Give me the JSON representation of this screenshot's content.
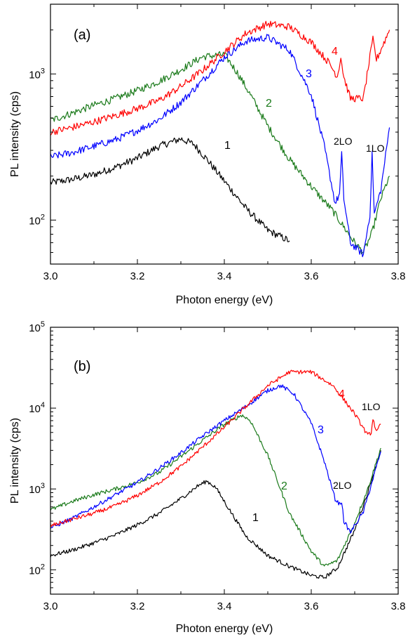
{
  "chart_data": [
    {
      "type": "line",
      "panel_label": "(a)",
      "xlabel": "Photon energy (eV)",
      "ylabel": "PL intensity (cps)",
      "xlim": [
        3.0,
        3.8
      ],
      "ylim": [
        50,
        3000
      ],
      "yscale": "log",
      "x_ticks": [
        "3.0",
        "3.2",
        "3.4",
        "3.6",
        "3.8"
      ],
      "y_ticks": [
        {
          "value": 100,
          "base": "10",
          "exp": "2"
        },
        {
          "value": 1000,
          "base": "10",
          "exp": "3"
        }
      ],
      "series": [
        {
          "name": "1",
          "color": "#000000",
          "x": [
            3.0,
            3.05,
            3.1,
            3.15,
            3.2,
            3.25,
            3.3,
            3.33,
            3.36,
            3.4,
            3.45,
            3.5,
            3.55
          ],
          "y": [
            180,
            190,
            205,
            230,
            265,
            320,
            360,
            330,
            260,
            185,
            120,
            85,
            72
          ]
        },
        {
          "name": "2",
          "color": "#1a7a1a",
          "x": [
            3.0,
            3.05,
            3.1,
            3.15,
            3.2,
            3.25,
            3.3,
            3.35,
            3.4,
            3.43,
            3.46,
            3.5,
            3.55,
            3.6,
            3.65,
            3.7,
            3.72,
            3.74,
            3.76,
            3.78
          ],
          "y": [
            480,
            540,
            610,
            680,
            770,
            890,
            1070,
            1310,
            1360,
            1020,
            720,
            440,
            260,
            170,
            115,
            70,
            60,
            82,
            140,
            200
          ]
        },
        {
          "name": "3",
          "color": "#0000ff",
          "x": [
            3.0,
            3.05,
            3.1,
            3.15,
            3.2,
            3.25,
            3.3,
            3.35,
            3.4,
            3.45,
            3.5,
            3.55,
            3.6,
            3.63,
            3.655,
            3.665,
            3.67,
            3.675,
            3.69,
            3.72,
            3.735,
            3.74,
            3.745,
            3.76,
            3.78
          ],
          "y": [
            270,
            290,
            320,
            355,
            410,
            490,
            640,
            900,
            1300,
            1680,
            1780,
            1450,
            720,
            320,
            130,
            150,
            280,
            140,
            70,
            58,
            110,
            280,
            110,
            160,
            430
          ]
        },
        {
          "name": "4",
          "color": "#ff0000",
          "x": [
            3.0,
            3.05,
            3.1,
            3.15,
            3.2,
            3.25,
            3.3,
            3.35,
            3.4,
            3.45,
            3.5,
            3.55,
            3.6,
            3.64,
            3.66,
            3.668,
            3.675,
            3.69,
            3.72,
            3.735,
            3.742,
            3.75,
            3.78
          ],
          "y": [
            400,
            430,
            470,
            520,
            580,
            660,
            820,
            1060,
            1420,
            1900,
            2200,
            2100,
            1650,
            1200,
            960,
            1300,
            950,
            680,
            680,
            1300,
            1720,
            1250,
            2000
          ]
        }
      ],
      "annotations": [
        "1",
        "2",
        "3",
        "4",
        "2LO",
        "1LO"
      ]
    },
    {
      "type": "line",
      "panel_label": "(b)",
      "xlabel": "Photon energy (eV)",
      "ylabel": "PL intensity (cps)",
      "xlim": [
        3.0,
        3.8
      ],
      "ylim": [
        50,
        100000
      ],
      "yscale": "log",
      "x_ticks": [
        "3.0",
        "3.2",
        "3.4",
        "3.6",
        "3.8"
      ],
      "y_ticks": [
        {
          "value": 100,
          "base": "10",
          "exp": "2"
        },
        {
          "value": 1000,
          "base": "10",
          "exp": "3"
        },
        {
          "value": 10000,
          "base": "10",
          "exp": "4"
        },
        {
          "value": 100000,
          "base": "10",
          "exp": "5"
        }
      ],
      "series": [
        {
          "name": "1",
          "color": "#000000",
          "x": [
            3.0,
            3.05,
            3.1,
            3.15,
            3.2,
            3.25,
            3.3,
            3.34,
            3.36,
            3.38,
            3.4,
            3.45,
            3.5,
            3.55,
            3.6,
            3.63,
            3.66,
            3.7,
            3.73,
            3.76
          ],
          "y": [
            150,
            175,
            215,
            270,
            360,
            500,
            760,
            1100,
            1250,
            1050,
            700,
            260,
            150,
            110,
            85,
            80,
            105,
            310,
            900,
            3000
          ]
        },
        {
          "name": "2",
          "color": "#1a7a1a",
          "x": [
            3.0,
            3.05,
            3.1,
            3.15,
            3.2,
            3.25,
            3.3,
            3.35,
            3.4,
            3.44,
            3.46,
            3.5,
            3.55,
            3.6,
            3.63,
            3.66,
            3.7,
            3.73,
            3.76
          ],
          "y": [
            550,
            700,
            850,
            1000,
            1200,
            1600,
            2500,
            4000,
            6300,
            8200,
            7000,
            2600,
            500,
            170,
            110,
            130,
            380,
            1000,
            3200
          ]
        },
        {
          "name": "3",
          "color": "#0000ff",
          "x": [
            3.0,
            3.05,
            3.1,
            3.15,
            3.2,
            3.25,
            3.3,
            3.35,
            3.4,
            3.45,
            3.5,
            3.53,
            3.56,
            3.6,
            3.63,
            3.655,
            3.665,
            3.67,
            3.675,
            3.69,
            3.72,
            3.76
          ],
          "y": [
            330,
            430,
            600,
            850,
            1200,
            1800,
            2800,
            4500,
            7000,
            10500,
            16500,
            19000,
            15000,
            6500,
            2200,
            750,
            650,
            700,
            400,
            290,
            520,
            2900
          ]
        },
        {
          "name": "4",
          "color": "#ff0000",
          "x": [
            3.0,
            3.05,
            3.1,
            3.15,
            3.2,
            3.25,
            3.3,
            3.35,
            3.4,
            3.45,
            3.5,
            3.55,
            3.6,
            3.65,
            3.7,
            3.73,
            3.738,
            3.742,
            3.75,
            3.76
          ],
          "y": [
            350,
            420,
            500,
            620,
            830,
            1200,
            1900,
            3300,
            5800,
            10500,
            19000,
            28000,
            28000,
            19000,
            8500,
            4600,
            5000,
            7500,
            5000,
            6300
          ]
        }
      ],
      "annotations": [
        "1",
        "2",
        "3",
        "4",
        "2LO",
        "1LO"
      ]
    }
  ]
}
